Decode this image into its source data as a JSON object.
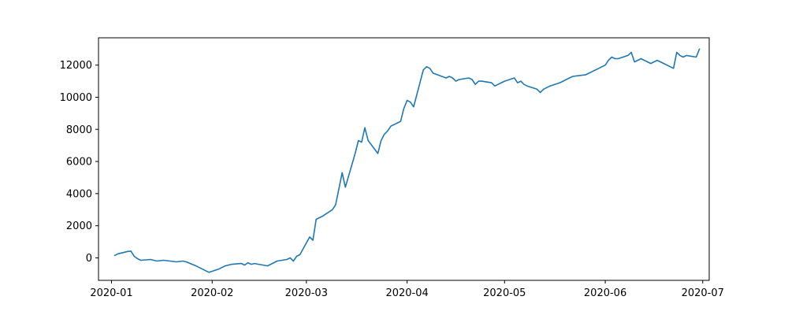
{
  "chart_data": {
    "type": "line",
    "title": "",
    "xlabel": "",
    "ylabel": "",
    "x_axis_type": "date",
    "xlim": [
      "2019-12-28",
      "2020-07-03"
    ],
    "ylim": [
      -1400,
      13700
    ],
    "grid": false,
    "legend": "none",
    "line_color": "#1f77b4",
    "x_ticks": [
      {
        "value": "2020-01-01",
        "label": "2020-01"
      },
      {
        "value": "2020-02-01",
        "label": "2020-02"
      },
      {
        "value": "2020-03-01",
        "label": "2020-03"
      },
      {
        "value": "2020-04-01",
        "label": "2020-04"
      },
      {
        "value": "2020-05-01",
        "label": "2020-05"
      },
      {
        "value": "2020-06-01",
        "label": "2020-06"
      },
      {
        "value": "2020-07-01",
        "label": "2020-07"
      }
    ],
    "y_ticks": [
      {
        "value": 0,
        "label": "0"
      },
      {
        "value": 2000,
        "label": "2000"
      },
      {
        "value": 4000,
        "label": "4000"
      },
      {
        "value": 6000,
        "label": "6000"
      },
      {
        "value": 8000,
        "label": "8000"
      },
      {
        "value": 10000,
        "label": "10000"
      },
      {
        "value": 12000,
        "label": "12000"
      }
    ],
    "series": [
      {
        "x": [
          "2020-01-02",
          "2020-01-03",
          "2020-01-06",
          "2020-01-07",
          "2020-01-08",
          "2020-01-09",
          "2020-01-10",
          "2020-01-13",
          "2020-01-14",
          "2020-01-15",
          "2020-01-17",
          "2020-01-21",
          "2020-01-23",
          "2020-01-24",
          "2020-01-27",
          "2020-01-28",
          "2020-01-29",
          "2020-01-30",
          "2020-01-31",
          "2020-02-03",
          "2020-02-04",
          "2020-02-05",
          "2020-02-06",
          "2020-02-07",
          "2020-02-10",
          "2020-02-11",
          "2020-02-12",
          "2020-02-13",
          "2020-02-14",
          "2020-02-18",
          "2020-02-19",
          "2020-02-20",
          "2020-02-21",
          "2020-02-24",
          "2020-02-25",
          "2020-02-26",
          "2020-02-27",
          "2020-02-28",
          "2020-03-02",
          "2020-03-03",
          "2020-03-04",
          "2020-03-05",
          "2020-03-06",
          "2020-03-09",
          "2020-03-10",
          "2020-03-11",
          "2020-03-12",
          "2020-03-13",
          "2020-03-16",
          "2020-03-17",
          "2020-03-18",
          "2020-03-19",
          "2020-03-20",
          "2020-03-23",
          "2020-03-24",
          "2020-03-25",
          "2020-03-26",
          "2020-03-27",
          "2020-03-30",
          "2020-03-31",
          "2020-04-01",
          "2020-04-02",
          "2020-04-03",
          "2020-04-06",
          "2020-04-07",
          "2020-04-08",
          "2020-04-09",
          "2020-04-13",
          "2020-04-14",
          "2020-04-15",
          "2020-04-16",
          "2020-04-17",
          "2020-04-20",
          "2020-04-21",
          "2020-04-22",
          "2020-04-23",
          "2020-04-24",
          "2020-04-27",
          "2020-04-28",
          "2020-04-29",
          "2020-04-30",
          "2020-05-01",
          "2020-05-04",
          "2020-05-05",
          "2020-05-06",
          "2020-05-07",
          "2020-05-08",
          "2020-05-11",
          "2020-05-12",
          "2020-05-13",
          "2020-05-14",
          "2020-05-15",
          "2020-05-18",
          "2020-05-19",
          "2020-05-20",
          "2020-05-21",
          "2020-05-22",
          "2020-05-26",
          "2020-05-27",
          "2020-05-28",
          "2020-05-29",
          "2020-06-01",
          "2020-06-02",
          "2020-06-03",
          "2020-06-04",
          "2020-06-05",
          "2020-06-08",
          "2020-06-09",
          "2020-06-10",
          "2020-06-11",
          "2020-06-12",
          "2020-06-15",
          "2020-06-16",
          "2020-06-17",
          "2020-06-18",
          "2020-06-19",
          "2020-06-22",
          "2020-06-23",
          "2020-06-24",
          "2020-06-25",
          "2020-06-26",
          "2020-06-29",
          "2020-06-30"
        ],
        "values": [
          150,
          250,
          400,
          420,
          100,
          -50,
          -150,
          -100,
          -150,
          -200,
          -150,
          -250,
          -200,
          -250,
          -500,
          -600,
          -700,
          -800,
          -900,
          -700,
          -600,
          -500,
          -450,
          -400,
          -350,
          -450,
          -300,
          -400,
          -350,
          -500,
          -400,
          -300,
          -200,
          -100,
          0,
          -200,
          100,
          200,
          1300,
          1100,
          2400,
          2500,
          2600,
          3000,
          3300,
          4300,
          5300,
          4400,
          6500,
          7300,
          7200,
          8100,
          7300,
          6500,
          7300,
          7700,
          7900,
          8200,
          8500,
          9300,
          9800,
          9700,
          9400,
          11700,
          11900,
          11800,
          11500,
          11200,
          11300,
          11200,
          11000,
          11100,
          11200,
          11100,
          10800,
          11000,
          11000,
          10900,
          10700,
          10800,
          10900,
          11000,
          11200,
          10900,
          11000,
          10800,
          10700,
          10500,
          10300,
          10500,
          10600,
          10700,
          10900,
          11000,
          11100,
          11200,
          11300,
          11400,
          11500,
          11600,
          11700,
          12000,
          12300,
          12500,
          12400,
          12400,
          12600,
          12800,
          12200,
          12300,
          12400,
          12100,
          12200,
          12300,
          12200,
          12100,
          11800,
          12800,
          12600,
          12500,
          12600,
          12500,
          13000
        ]
      }
    ]
  }
}
